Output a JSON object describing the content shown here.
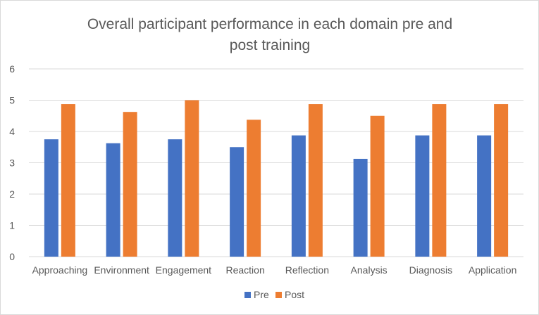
{
  "chart_data": {
    "type": "bar",
    "title_lines": [
      "Overall participant performance in each domain pre and",
      "post training"
    ],
    "categories": [
      "Approaching",
      "Environment",
      "Engagement",
      "Reaction",
      "Reflection",
      "Analysis",
      "Diagnosis",
      "Application"
    ],
    "series": [
      {
        "name": "Pre",
        "color": "#4472c4",
        "values": [
          3.75,
          3.625,
          3.75,
          3.5,
          3.875,
          3.125,
          3.875,
          3.875
        ]
      },
      {
        "name": "Post",
        "color": "#ed7d31",
        "values": [
          4.875,
          4.625,
          5.0,
          4.375,
          4.875,
          4.5,
          4.875,
          4.875
        ]
      }
    ],
    "xlabel": "",
    "ylabel": "",
    "ylim": [
      0,
      6
    ],
    "y_ticks": [
      "0",
      "1",
      "2",
      "3",
      "4",
      "5",
      "6"
    ],
    "grid": true,
    "legend_position": "bottom",
    "gridline_color": "#d9d9d9"
  }
}
